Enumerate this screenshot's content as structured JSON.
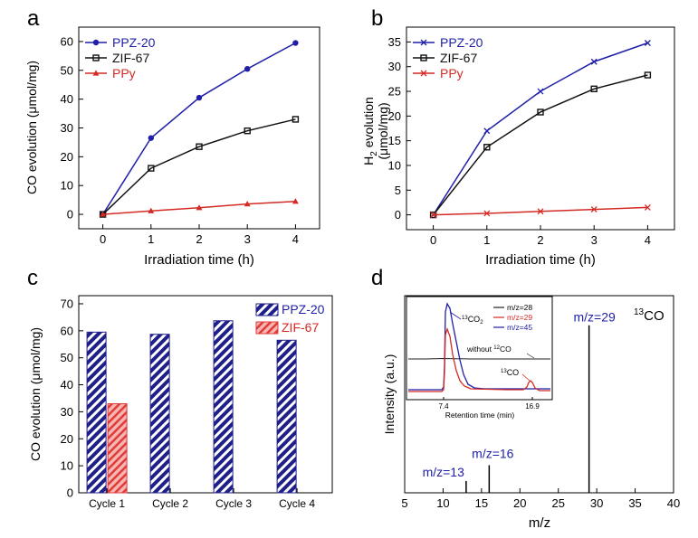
{
  "colors": {
    "ppz": "#1f1fa8",
    "zif": "#111111",
    "ppy": "#d42a24",
    "hatch_red": "#e03a3a"
  },
  "chart_data": [
    {
      "id": "a",
      "panel_label": "a",
      "type": "line",
      "xlabel": "Irradiation time (h)",
      "ylabel": "CO evolution (μmol/mg)",
      "x": [
        0,
        1,
        2,
        3,
        4
      ],
      "xlim": [
        -0.5,
        4.5
      ],
      "ylim": [
        -5,
        65
      ],
      "xticks": [
        "0",
        "1",
        "2",
        "3",
        "4"
      ],
      "yticks": [
        "0",
        "10",
        "20",
        "30",
        "40",
        "50",
        "60"
      ],
      "series": [
        {
          "name": "PPZ-20",
          "marker": "circle",
          "values": [
            0,
            26.5,
            40.5,
            50.5,
            59.5
          ]
        },
        {
          "name": "ZIF-67",
          "marker": "square",
          "values": [
            0,
            16,
            23.5,
            29,
            33
          ]
        },
        {
          "name": "PPy",
          "marker": "triangle",
          "values": [
            0,
            1.2,
            2.3,
            3.6,
            4.5
          ]
        }
      ]
    },
    {
      "id": "b",
      "panel_label": "b",
      "type": "line",
      "xlabel": "Irradiation time (h)",
      "ylabel": "H2 evolution (μmol/mg)",
      "ylabel_main": "H",
      "ylabel_sub": "2",
      "ylabel_rest": " evolution",
      "ylabel_unit": "(μmol/mg)",
      "x": [
        0,
        1,
        2,
        3,
        4
      ],
      "xlim": [
        -0.5,
        4.5
      ],
      "ylim": [
        -3,
        38
      ],
      "xticks": [
        "0",
        "1",
        "2",
        "3",
        "4"
      ],
      "yticks": [
        "0",
        "5",
        "10",
        "15",
        "20",
        "25",
        "30",
        "35"
      ],
      "series": [
        {
          "name": "PPZ-20",
          "marker": "x",
          "values": [
            0,
            17,
            25,
            31,
            34.8
          ]
        },
        {
          "name": "ZIF-67",
          "marker": "square",
          "values": [
            0,
            13.7,
            20.8,
            25.5,
            28.3
          ]
        },
        {
          "name": "PPy",
          "marker": "x",
          "values": [
            0,
            0.3,
            0.7,
            1.1,
            1.5
          ]
        }
      ]
    },
    {
      "id": "c",
      "panel_label": "c",
      "type": "bar",
      "ylabel": "CO evolution (μmol/mg)",
      "categories": [
        "Cycle 1",
        "Cycle 2",
        "Cycle 3",
        "Cycle 4"
      ],
      "ylim": [
        0,
        73
      ],
      "yticks": [
        "0",
        "10",
        "20",
        "30",
        "40",
        "50",
        "60",
        "70"
      ],
      "series": [
        {
          "name": "PPZ-20",
          "values": [
            59.5,
            58.7,
            63.7,
            56.5
          ]
        },
        {
          "name": "ZIF-67",
          "values": [
            33,
            null,
            null,
            null
          ]
        }
      ]
    },
    {
      "id": "d",
      "panel_label": "d",
      "type": "bar",
      "xlabel": "m/z",
      "ylabel": "Intensity (a.u.)",
      "xlim": [
        5,
        40
      ],
      "xticks": [
        "5",
        "10",
        "15",
        "20",
        "25",
        "30",
        "35",
        "40"
      ],
      "peaks": [
        {
          "mz": 13,
          "intensity": 0.06,
          "label": "m/z=13"
        },
        {
          "mz": 16,
          "intensity": 0.14,
          "label": "m/z=16"
        },
        {
          "mz": 29,
          "intensity": 0.85,
          "label": "m/z=29"
        }
      ],
      "annotation_main": "CO",
      "annotation_sup": "13",
      "inset": {
        "xlabel": "Retention time (min)",
        "xticks": [
          "7.4",
          "16.9"
        ],
        "legend": [
          "m/z=28",
          "m/z=29",
          "m/z=45"
        ],
        "annotation_13co2_sup": "13",
        "annotation_13co2_main": "CO",
        "annotation_13co2_sub": "2",
        "annotation_without": "without ",
        "annotation_without_sup": "12",
        "annotation_without_main": "CO",
        "annotation_13co_sup": "13",
        "annotation_13co_main": "CO"
      }
    }
  ]
}
